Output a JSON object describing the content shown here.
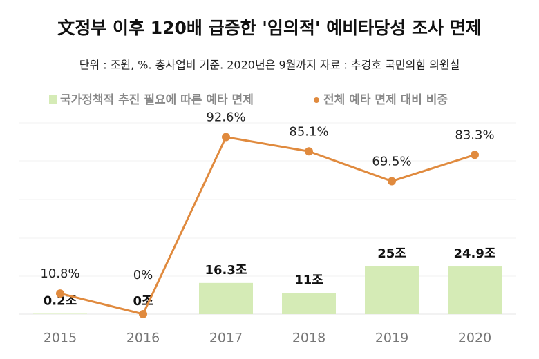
{
  "chart_data": {
    "type": "bar-line",
    "title": "文정부 이후 120배 급증한 '임의적' 예비타당성 조사 면제",
    "subtitle": "단위 : 조원, %. 총사업비 기준. 2020년은 9월까지  자료 : 추경호 국민의힘 의원실",
    "categories": [
      "2015",
      "2016",
      "2017",
      "2018",
      "2019",
      "2020"
    ],
    "series": [
      {
        "name": "국가정책적 추진 필요에 따른 예타 면제",
        "type": "bar",
        "color": "#d5ebb6",
        "values": [
          0.2,
          0,
          16.3,
          11,
          25,
          24.9
        ],
        "value_labels": [
          "0.2조",
          "0조",
          "16.3조",
          "11조",
          "25조",
          "24.9조"
        ]
      },
      {
        "name": "전체 예타 면제 대비 비중",
        "type": "line",
        "color": "#e08a3e",
        "axis": "y2",
        "values": [
          10.8,
          0,
          92.6,
          85.1,
          69.5,
          83.3
        ],
        "value_labels": [
          "10.8%",
          "0%",
          "92.6%",
          "85.1%",
          "69.5%",
          "83.3%"
        ]
      }
    ],
    "ylim": [
      0,
      100
    ],
    "y2lim": [
      0,
      100
    ]
  }
}
